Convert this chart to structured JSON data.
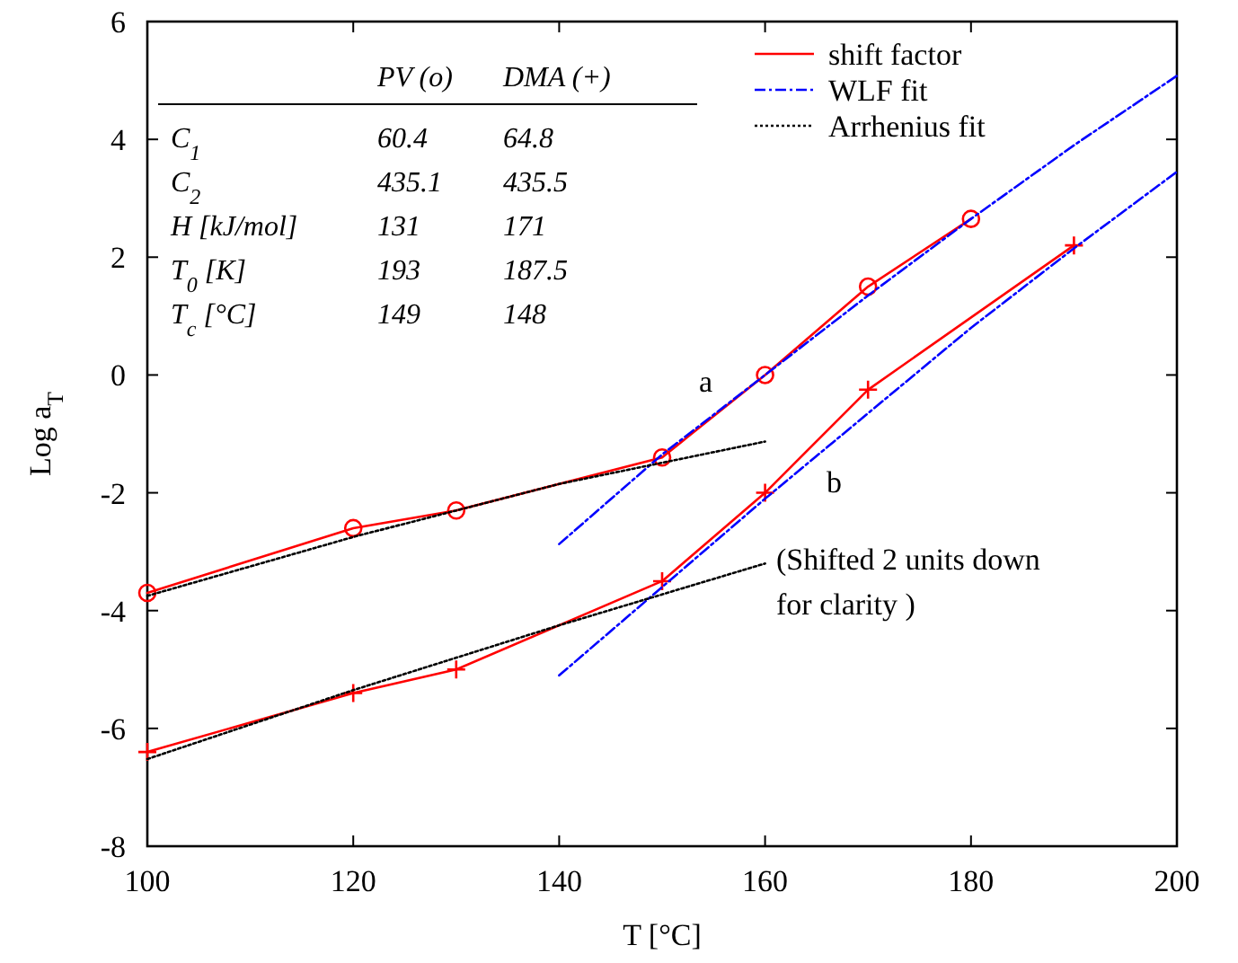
{
  "chart_data": {
    "type": "line",
    "xlabel": "T [°C]",
    "ylabel": "Log a$_{T}$",
    "xlim": [
      100,
      200
    ],
    "xticks": [
      100,
      120,
      140,
      160,
      180,
      200
    ],
    "ylim": [
      -8,
      6
    ],
    "yticks": [
      -8,
      -6,
      -4,
      -2,
      0,
      2,
      4,
      6
    ],
    "grid": false,
    "legend": "top right",
    "series": [
      {
        "name": "shift factor",
        "color": "#ff0000",
        "line_style": "solid",
        "marker": "circle",
        "x": [
          100,
          120,
          130,
          150,
          160,
          170,
          180
        ],
        "values": [
          -3.7,
          -2.6,
          -2.3,
          -1.4,
          0,
          1.5,
          2.65
        ]
      },
      {
        "color": "#ff0000",
        "line_style": "solid",
        "marker": "cross",
        "x": [
          100,
          120,
          130,
          150,
          160,
          170,
          190
        ],
        "values": [
          -6.4,
          -5.4,
          -5.0,
          -3.5,
          -2.0,
          -0.25,
          2.2
        ]
      },
      {
        "name": "WLF fit",
        "color": "#0000ff",
        "line_style": "dashed",
        "marker": "none",
        "x": [
          140,
          150,
          160,
          170,
          180,
          190,
          200
        ],
        "values": [
          -2.87,
          -1.35,
          0,
          1.35,
          2.65,
          3.9,
          5.08
        ]
      },
      {
        "color": "#0000ff",
        "line_style": "dashed",
        "marker": "none",
        "x": [
          140,
          150,
          160,
          170,
          180,
          190,
          200
        ],
        "values": [
          -5.1,
          -3.6,
          -2.1,
          -0.65,
          0.8,
          2.15,
          3.45
        ]
      },
      {
        "name": "Arrhenius fit",
        "color": "#000000",
        "line_style": "dotted",
        "marker": "none",
        "x": [
          100,
          120,
          140,
          160
        ],
        "values": [
          -3.75,
          -2.75,
          -1.85,
          -1.13
        ]
      },
      {
        "color": "#000000",
        "line_style": "dotted",
        "marker": "none",
        "x": [
          100,
          120,
          140,
          160
        ],
        "values": [
          -6.52,
          -5.35,
          -4.25,
          -3.2
        ]
      }
    ],
    "annotations": [
      "PV (o)",
      "DMA (+)",
      "C$_{1}$",
      "60.4",
      "64.8",
      "C$_{2}$",
      "435.1",
      "435.5",
      "H [kJ/mol]",
      "131",
      "171",
      "T$_{0}$ [K]",
      "193",
      "187.5",
      "T$_{c}$ [°C]",
      "149",
      "148",
      "a",
      "b",
      "(Shifted 2 units down",
      "for clarity )"
    ]
  }
}
